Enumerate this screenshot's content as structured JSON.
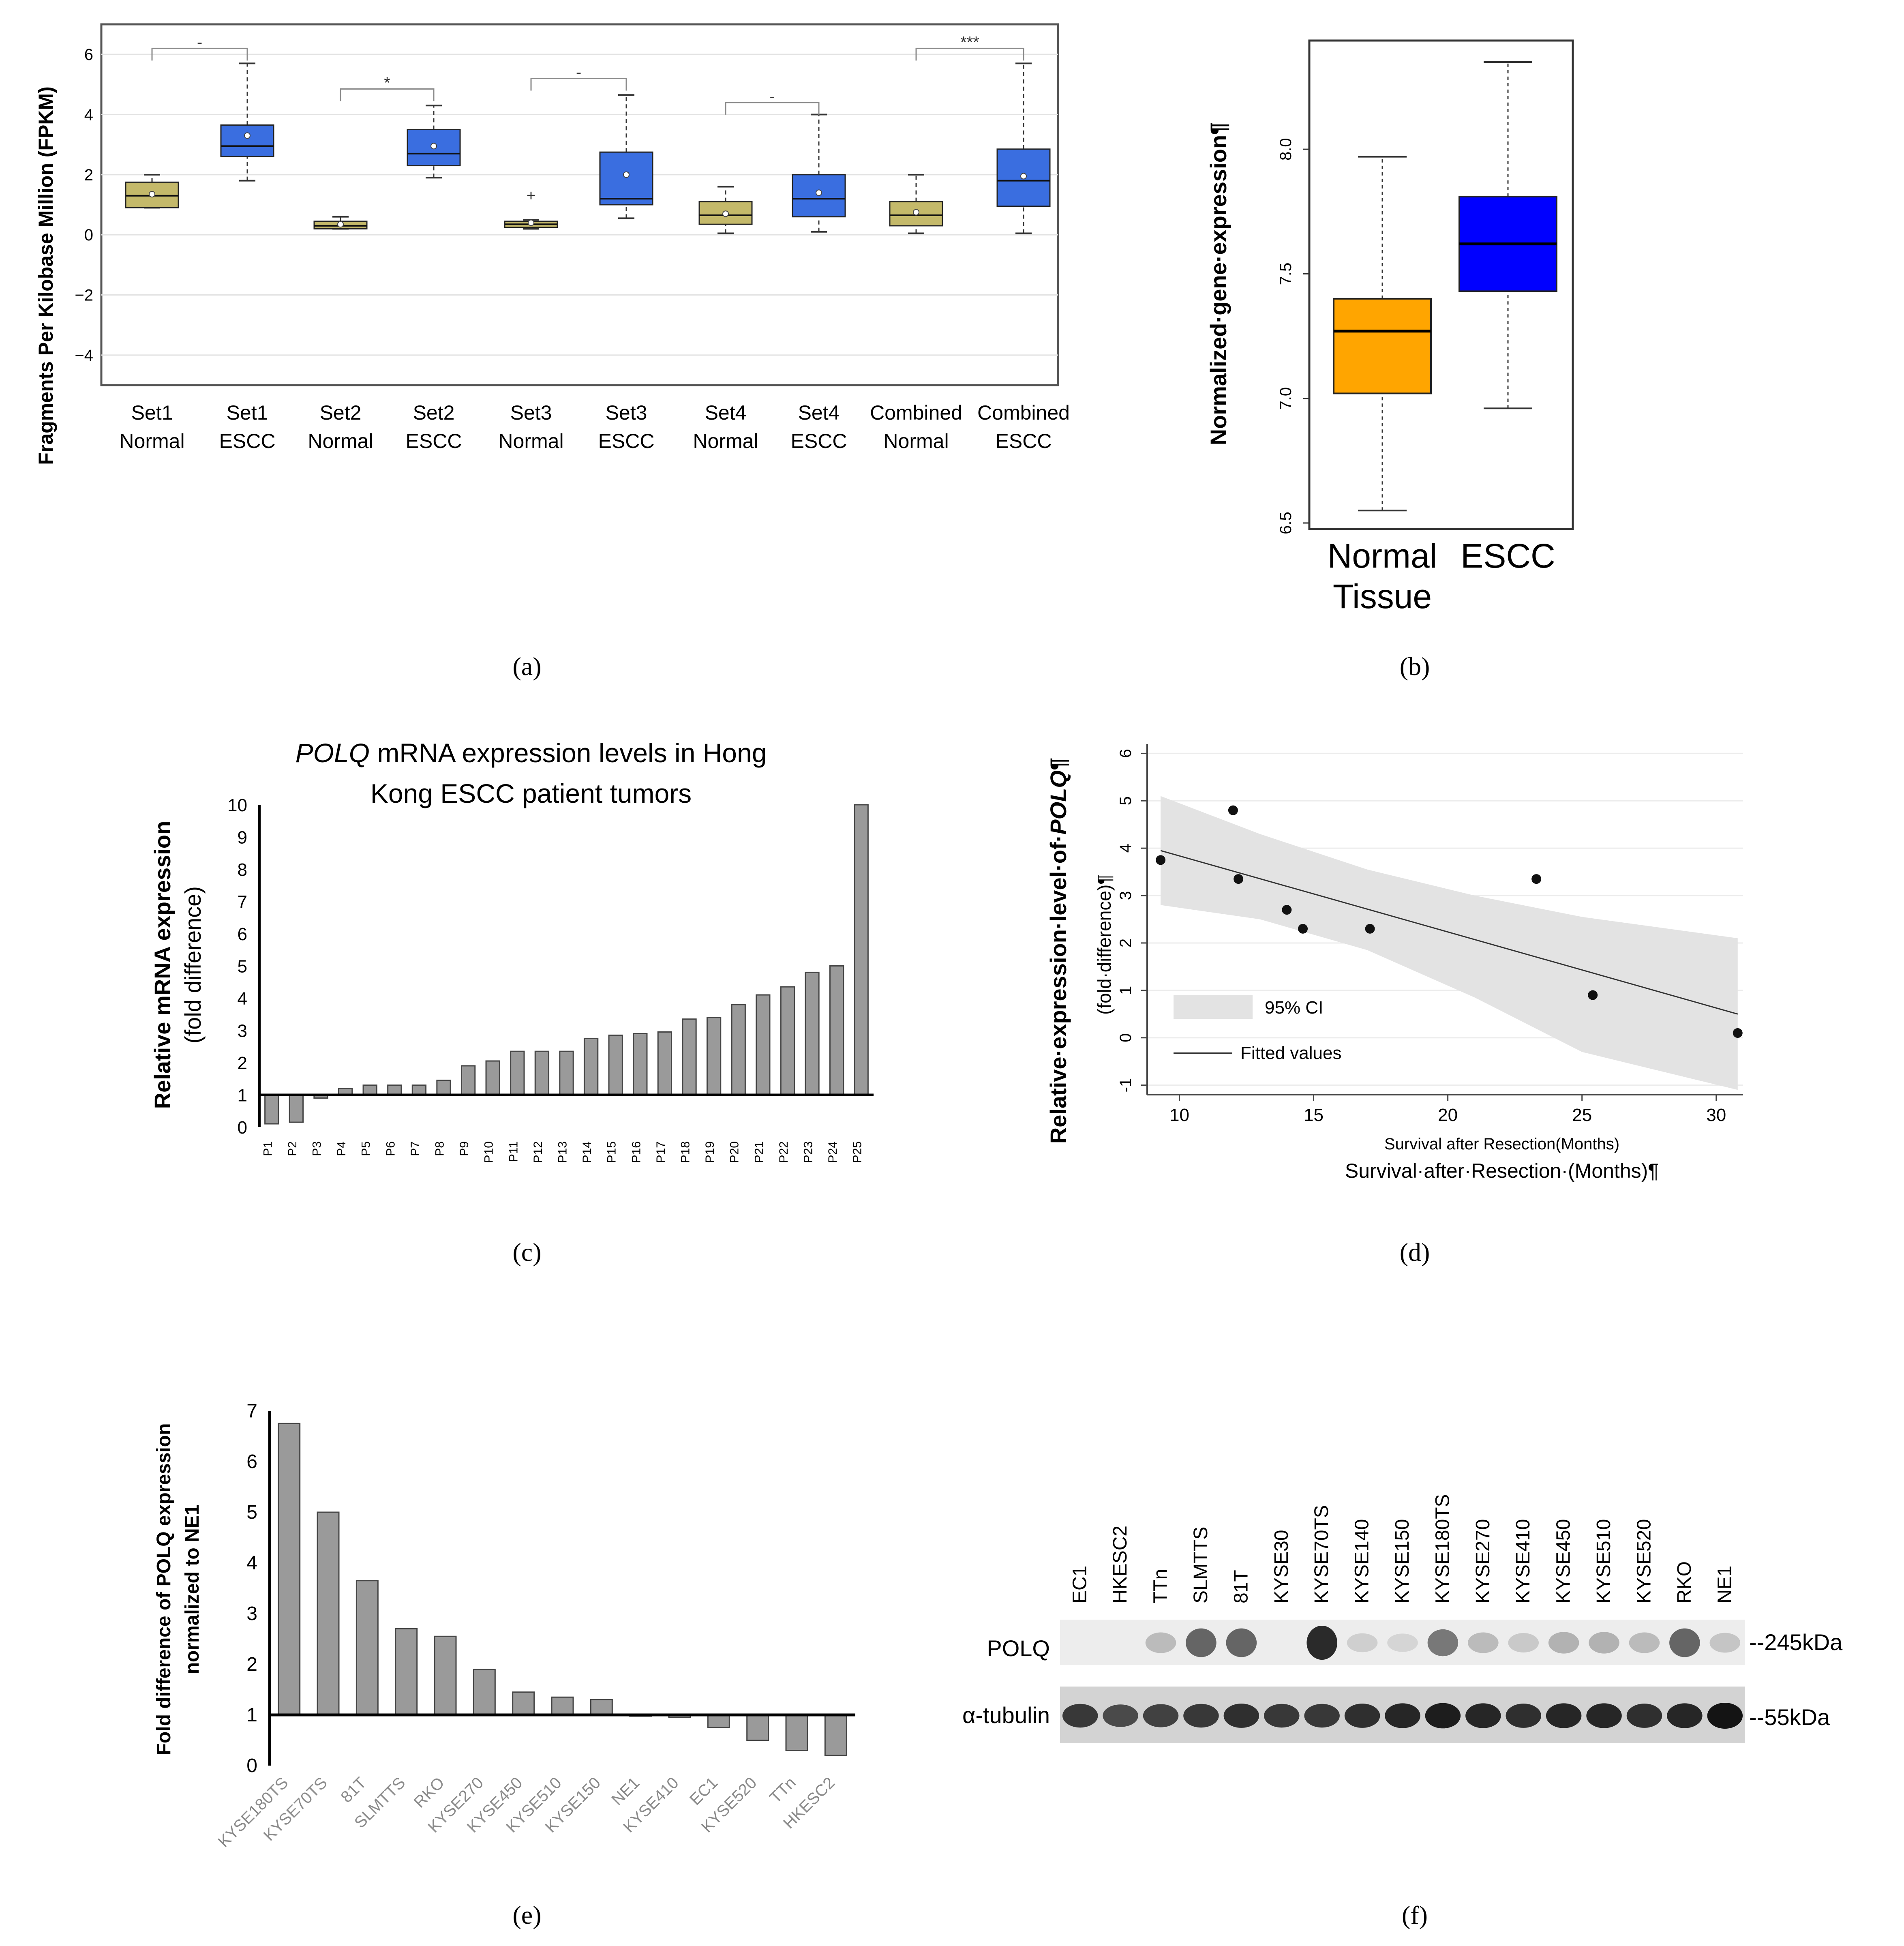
{
  "panels": {
    "a": "(a)",
    "b": "(b)",
    "c": "(c)",
    "d": "(d)",
    "e": "(e)",
    "f": "(f)"
  },
  "colors": {
    "normal_box_a": "#c4b96a",
    "escc_box_a": "#3a6ee0",
    "normal_box_b": "#ffa500",
    "escc_box_b": "#0000ff",
    "bar_gray": "#9a9a9a",
    "ci_band": "#e3e3e3"
  },
  "chart_data": [
    {
      "id": "a",
      "type": "box",
      "ylabel": "Fragments Per Kilobase Million (FPKM)",
      "ylim": [
        -5,
        7
      ],
      "yticks": [
        "6",
        "4",
        "2",
        "0",
        "−2",
        "−4"
      ],
      "ytick_values": [
        6,
        4,
        2,
        0,
        -2,
        -4
      ],
      "groups": [
        {
          "line1": "Set1",
          "line2": "Normal",
          "kind": "normal",
          "whisker_low": 0.9,
          "q1": 0.9,
          "median": 1.3,
          "q3": 1.75,
          "whisker_high": 2.0,
          "mean": 1.35
        },
        {
          "line1": "Set1",
          "line2": "ESCC",
          "kind": "escc",
          "whisker_low": 1.8,
          "q1": 2.6,
          "median": 2.95,
          "q3": 3.65,
          "whisker_high": 5.7,
          "mean": 3.3
        },
        {
          "line1": "Set2",
          "line2": "Normal",
          "kind": "normal",
          "whisker_low": 0.2,
          "q1": 0.2,
          "median": 0.3,
          "q3": 0.45,
          "whisker_high": 0.6,
          "mean": 0.35
        },
        {
          "line1": "Set2",
          "line2": "ESCC",
          "kind": "escc",
          "whisker_low": 1.9,
          "q1": 2.3,
          "median": 2.7,
          "q3": 3.5,
          "whisker_high": 4.3,
          "mean": 2.95
        },
        {
          "line1": "Set3",
          "line2": "Normal",
          "kind": "normal",
          "whisker_low": 0.2,
          "q1": 0.25,
          "median": 0.35,
          "q3": 0.45,
          "whisker_high": 0.5,
          "mean": 0.4,
          "outlier": 1.3
        },
        {
          "line1": "Set3",
          "line2": "ESCC",
          "kind": "escc",
          "whisker_low": 0.55,
          "q1": 1.0,
          "median": 1.2,
          "q3": 2.75,
          "whisker_high": 4.65,
          "mean": 2.0
        },
        {
          "line1": "Set4",
          "line2": "Normal",
          "kind": "normal",
          "whisker_low": 0.05,
          "q1": 0.35,
          "median": 0.65,
          "q3": 1.1,
          "whisker_high": 1.6,
          "mean": 0.7
        },
        {
          "line1": "Set4",
          "line2": "ESCC",
          "kind": "escc",
          "whisker_low": 0.1,
          "q1": 0.6,
          "median": 1.2,
          "q3": 2.0,
          "whisker_high": 4.0,
          "mean": 1.4
        },
        {
          "line1": "Combined",
          "line2": "Normal",
          "kind": "normal",
          "whisker_low": 0.05,
          "q1": 0.3,
          "median": 0.65,
          "q3": 1.1,
          "whisker_high": 2.0,
          "mean": 0.75
        },
        {
          "line1": "Combined",
          "line2": "ESCC",
          "kind": "escc",
          "whisker_low": 0.05,
          "q1": 0.95,
          "median": 1.8,
          "q3": 2.85,
          "whisker_high": 5.7,
          "mean": 1.95
        }
      ],
      "brackets": [
        {
          "from": 0,
          "to": 1,
          "y": 6.2,
          "label": "-"
        },
        {
          "from": 2,
          "to": 3,
          "y": 4.85,
          "label": "*"
        },
        {
          "from": 4,
          "to": 5,
          "y": 5.2,
          "label": "-"
        },
        {
          "from": 6,
          "to": 7,
          "y": 4.4,
          "label": "-"
        },
        {
          "from": 8,
          "to": 9,
          "y": 6.2,
          "label": "***"
        }
      ]
    },
    {
      "id": "b",
      "type": "box",
      "ylabel": "Normalized·gene·expression¶",
      "ylim": [
        6.5,
        8.42
      ],
      "yticks": [
        "6.5",
        "7.0",
        "7.5",
        "8.0"
      ],
      "ytick_values": [
        6.5,
        7.0,
        7.5,
        8.0
      ],
      "groups": [
        {
          "line1": "Normal",
          "line2": "Tissue",
          "kind": "normal",
          "whisker_low": 6.55,
          "q1": 7.02,
          "median": 7.27,
          "q3": 7.4,
          "whisker_high": 7.97
        },
        {
          "line1": "ESCC",
          "line2": "",
          "kind": "escc",
          "whisker_low": 6.96,
          "q1": 7.43,
          "median": 7.62,
          "q3": 7.81,
          "whisker_high": 8.35
        }
      ]
    },
    {
      "id": "c",
      "type": "bar",
      "title_italic": "POLQ",
      "title_rest": " mRNA expression levels in Hong",
      "title_line2": "Kong ESCC patient tumors",
      "ylabel": "Relative mRNA expression",
      "ylabel2": "(fold difference)",
      "ylim": [
        0,
        10
      ],
      "baseline": 1,
      "yticks": [
        "0",
        "1",
        "2",
        "3",
        "4",
        "5",
        "6",
        "7",
        "8",
        "9",
        "10"
      ],
      "categories": [
        "P1",
        "P2",
        "P3",
        "P4",
        "P5",
        "P6",
        "P7",
        "P8",
        "P9",
        "P10",
        "P11",
        "P12",
        "P13",
        "P14",
        "P15",
        "P16",
        "P17",
        "P18",
        "P19",
        "P20",
        "P21",
        "P22",
        "P23",
        "P24",
        "P25"
      ],
      "values": [
        0.1,
        0.15,
        0.9,
        1.2,
        1.3,
        1.3,
        1.3,
        1.45,
        1.9,
        2.05,
        2.35,
        2.35,
        2.35,
        2.75,
        2.85,
        2.9,
        2.95,
        3.35,
        3.4,
        3.8,
        4.1,
        4.35,
        4.8,
        5.0,
        10.0
      ]
    },
    {
      "id": "d",
      "type": "scatter",
      "ylabel": "Relative·expression·level·of·",
      "ylabel_gene": "POLQ",
      "ylabel_end": "¶",
      "ylabel_inner": "(fold·difference)¶",
      "xlabel_inner": "Survival after Resection(Months)",
      "xlabel_outer": "Survival·after·Resection·(Months)¶",
      "xlim": [
        8.8,
        31.0
      ],
      "ylim": [
        -1.2,
        6.2
      ],
      "xticks": [
        "10",
        "15",
        "20",
        "25",
        "30"
      ],
      "xtick_values": [
        10,
        15,
        20,
        25,
        30
      ],
      "yticks": [
        "-1",
        "0",
        "1",
        "2",
        "3",
        "4",
        "5",
        "6"
      ],
      "ytick_values": [
        -1,
        0,
        1,
        2,
        3,
        4,
        5,
        6
      ],
      "points": [
        {
          "x": 9.3,
          "y": 3.75
        },
        {
          "x": 12.0,
          "y": 4.8
        },
        {
          "x": 12.2,
          "y": 3.35
        },
        {
          "x": 14.0,
          "y": 2.7
        },
        {
          "x": 14.6,
          "y": 2.3
        },
        {
          "x": 17.1,
          "y": 2.3
        },
        {
          "x": 23.3,
          "y": 3.35
        },
        {
          "x": 25.4,
          "y": 0.9
        },
        {
          "x": 30.8,
          "y": 0.1
        }
      ],
      "fit": {
        "x0": 9.3,
        "y0": 3.95,
        "x1": 30.8,
        "y1": 0.5
      },
      "ci_upper": [
        {
          "x": 9.3,
          "y": 5.1
        },
        {
          "x": 13,
          "y": 4.3
        },
        {
          "x": 17,
          "y": 3.55
        },
        {
          "x": 21,
          "y": 3.0
        },
        {
          "x": 25,
          "y": 2.55
        },
        {
          "x": 30.8,
          "y": 2.1
        }
      ],
      "ci_lower": [
        {
          "x": 9.3,
          "y": 2.8
        },
        {
          "x": 13,
          "y": 2.5
        },
        {
          "x": 17,
          "y": 1.85
        },
        {
          "x": 21,
          "y": 0.85
        },
        {
          "x": 25,
          "y": -0.3
        },
        {
          "x": 30.8,
          "y": -1.1
        }
      ],
      "legend": {
        "ci": "95% CI",
        "fit": "Fitted values"
      }
    },
    {
      "id": "e",
      "type": "bar",
      "ylabel": "Fold difference of POLQ expression",
      "ylabel2": "normalized to NE1",
      "ylim": [
        0,
        7
      ],
      "baseline": 1,
      "yticks": [
        "0",
        "1",
        "2",
        "3",
        "4",
        "5",
        "6",
        "7"
      ],
      "categories": [
        "KYSE180TS",
        "KYSE70TS",
        "81T",
        "SLMTTS",
        "RKO",
        "KYSE270",
        "KYSE450",
        "KYSE510",
        "KYSE150",
        "NE1",
        "KYSE410",
        "EC1",
        "KYSE520",
        "TTn",
        "HKESC2"
      ],
      "values": [
        6.75,
        5.0,
        3.65,
        2.7,
        2.55,
        1.9,
        1.45,
        1.35,
        1.3,
        1.0,
        0.95,
        0.75,
        0.5,
        0.3,
        0.2
      ]
    }
  ],
  "western": {
    "lanes": [
      "EC1",
      "HKESC2",
      "TTn",
      "SLMTTS",
      "81T",
      "KYSE30",
      "KYSE70TS",
      "KYSE140",
      "KYSE150",
      "KYSE180TS",
      "KYSE270",
      "KYSE410",
      "KYSE450",
      "KYSE510",
      "KYSE520",
      "RKO",
      "NE1"
    ],
    "polq_intensity": [
      0.0,
      0.0,
      0.25,
      0.7,
      0.7,
      0.0,
      1.0,
      0.15,
      0.12,
      0.6,
      0.25,
      0.18,
      0.3,
      0.3,
      0.25,
      0.7,
      0.2
    ],
    "tubulin_intensity": [
      0.8,
      0.7,
      0.75,
      0.8,
      0.85,
      0.8,
      0.8,
      0.85,
      0.9,
      0.95,
      0.9,
      0.85,
      0.9,
      0.9,
      0.85,
      0.9,
      1.0
    ],
    "row_polq": "POLQ",
    "row_tubulin": "α-tubulin",
    "marker_polq": "--245kDa",
    "marker_tubulin": "--55kDa"
  }
}
